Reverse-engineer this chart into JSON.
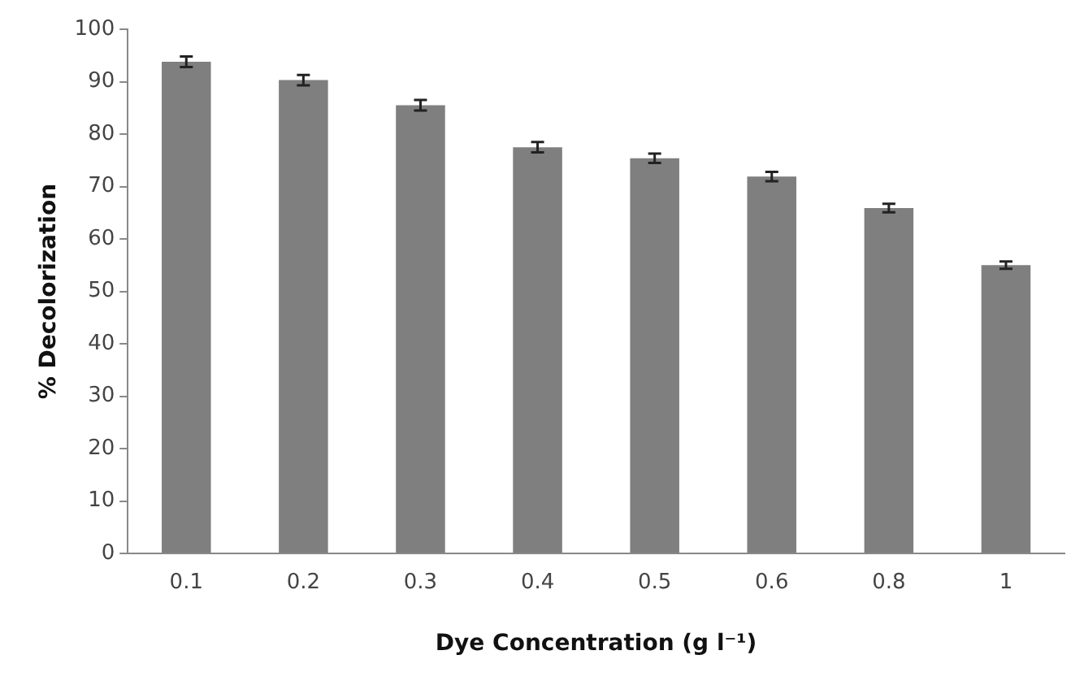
{
  "chart_data": {
    "type": "bar",
    "xlabel": "Dye Concentration (g l⁻¹)",
    "ylabel": "% Decolorization",
    "categories": [
      "0.1",
      "0.2",
      "0.3",
      "0.4",
      "0.5",
      "0.6",
      "0.8",
      "1"
    ],
    "values": [
      93.8,
      90.3,
      85.5,
      77.5,
      75.4,
      71.9,
      65.9,
      55.0
    ],
    "errors": [
      1,
      1,
      1,
      1,
      0.9,
      0.9,
      0.8,
      0.7
    ],
    "color": "#7f7f7f",
    "ylim": [
      0,
      100
    ],
    "yticks": [
      0,
      10,
      20,
      30,
      40,
      50,
      60,
      70,
      80,
      90,
      100
    ],
    "grid": false,
    "legend": false
  }
}
